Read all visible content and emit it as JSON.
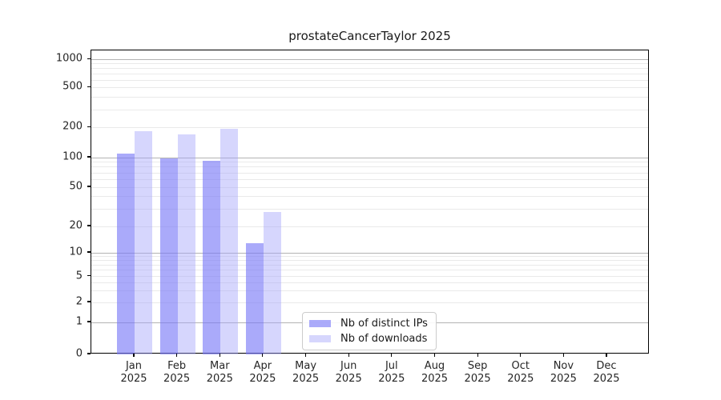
{
  "chart_data": {
    "type": "bar",
    "title": "prostateCancerTaylor 2025",
    "year": "2025",
    "categories": [
      "Jan",
      "Feb",
      "Mar",
      "Apr",
      "May",
      "Jun",
      "Jul",
      "Aug",
      "Sep",
      "Oct",
      "Nov",
      "Dec"
    ],
    "x_tick_second_line": "2025",
    "series": [
      {
        "name": "Nb of distinct IPs",
        "color": "#7878f7",
        "alpha": 0.63,
        "values": [
          110,
          98,
          92,
          13,
          0,
          0,
          0,
          0,
          0,
          0,
          0,
          0
        ]
      },
      {
        "name": "Nb of downloads",
        "color": "#a5a5fa",
        "alpha": 0.45,
        "values": [
          185,
          170,
          193,
          28,
          0,
          0,
          0,
          0,
          0,
          0,
          0,
          0
        ]
      }
    ],
    "xlabel": "",
    "ylabel": "",
    "yscale": "log-like (linear 0-1, log decades above)",
    "yticks": [
      0,
      1,
      2,
      5,
      10,
      20,
      50,
      100,
      200,
      500,
      1000
    ],
    "ylim": [
      0,
      1100
    ],
    "grid": "horizontal major and minor",
    "legend_position": "lower center",
    "colors": {
      "major_grid": "#b3b3b3",
      "minor_grid": "#eaeaea",
      "spine": "#000000",
      "text": "#262626"
    }
  }
}
